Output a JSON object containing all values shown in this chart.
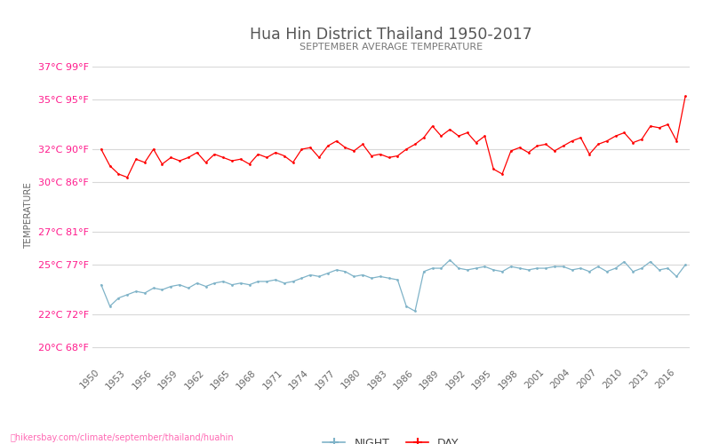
{
  "title": "Hua Hin District Thailand 1950-2017",
  "subtitle": "SEPTEMBER AVERAGE TEMPERATURE",
  "ylabel": "TEMPERATURE",
  "footer": "hikersbay.com/climate/september/thailand/huahin",
  "years": [
    1950,
    1951,
    1952,
    1953,
    1954,
    1955,
    1956,
    1957,
    1958,
    1959,
    1960,
    1961,
    1962,
    1963,
    1964,
    1965,
    1966,
    1967,
    1968,
    1969,
    1970,
    1971,
    1972,
    1973,
    1974,
    1975,
    1976,
    1977,
    1978,
    1979,
    1980,
    1981,
    1982,
    1983,
    1984,
    1985,
    1986,
    1987,
    1988,
    1989,
    1990,
    1991,
    1992,
    1993,
    1994,
    1995,
    1996,
    1997,
    1998,
    1999,
    2000,
    2001,
    2002,
    2003,
    2004,
    2005,
    2006,
    2007,
    2008,
    2009,
    2010,
    2011,
    2012,
    2013,
    2014,
    2015,
    2016,
    2017
  ],
  "day_temps": [
    32.0,
    31.0,
    30.5,
    30.3,
    31.4,
    31.2,
    32.0,
    31.1,
    31.5,
    31.3,
    31.5,
    31.8,
    31.2,
    31.7,
    31.5,
    31.3,
    31.4,
    31.1,
    31.7,
    31.5,
    31.8,
    31.6,
    31.2,
    32.0,
    32.1,
    31.5,
    32.2,
    32.5,
    32.1,
    31.9,
    32.3,
    31.6,
    31.7,
    31.5,
    31.6,
    32.0,
    32.3,
    32.7,
    33.4,
    32.8,
    33.2,
    32.8,
    33.0,
    32.4,
    32.8,
    30.8,
    30.5,
    31.9,
    32.1,
    31.8,
    32.2,
    32.3,
    31.9,
    32.2,
    32.5,
    32.7,
    31.7,
    32.3,
    32.5,
    32.8,
    33.0,
    32.4,
    32.6,
    33.4,
    33.3,
    33.5,
    32.5,
    35.2
  ],
  "night_temps": [
    23.8,
    22.5,
    23.0,
    23.2,
    23.4,
    23.3,
    23.6,
    23.5,
    23.7,
    23.8,
    23.6,
    23.9,
    23.7,
    23.9,
    24.0,
    23.8,
    23.9,
    23.8,
    24.0,
    24.0,
    24.1,
    23.9,
    24.0,
    24.2,
    24.4,
    24.3,
    24.5,
    24.7,
    24.6,
    24.3,
    24.4,
    24.2,
    24.3,
    24.2,
    24.1,
    22.5,
    22.2,
    24.6,
    24.8,
    24.8,
    25.3,
    24.8,
    24.7,
    24.8,
    24.9,
    24.7,
    24.6,
    24.9,
    24.8,
    24.7,
    24.8,
    24.8,
    24.9,
    24.9,
    24.7,
    24.8,
    24.6,
    24.9,
    24.6,
    24.8,
    25.2,
    24.6,
    24.8,
    25.2,
    24.7,
    24.8,
    24.3,
    25.0
  ],
  "day_color": "#ff0000",
  "night_color": "#7fb3c8",
  "title_color": "#555555",
  "subtitle_color": "#777777",
  "label_color": "#ff1a8c",
  "ylabel_color": "#666666",
  "grid_color": "#d8d8d8",
  "bg_color": "#ffffff",
  "yticks_c": [
    20,
    22,
    25,
    27,
    30,
    32,
    35,
    37
  ],
  "yticks_f": [
    68,
    72,
    77,
    81,
    86,
    90,
    95,
    99
  ],
  "ylim": [
    19.0,
    36.8
  ],
  "xlim_left": 1949.0,
  "xlim_right": 2017.5,
  "xtick_years": [
    1950,
    1953,
    1956,
    1959,
    1962,
    1965,
    1968,
    1971,
    1974,
    1977,
    1980,
    1983,
    1986,
    1989,
    1992,
    1995,
    1998,
    2001,
    2004,
    2007,
    2010,
    2013,
    2016
  ],
  "legend_night": "NIGHT",
  "legend_day": "DAY"
}
